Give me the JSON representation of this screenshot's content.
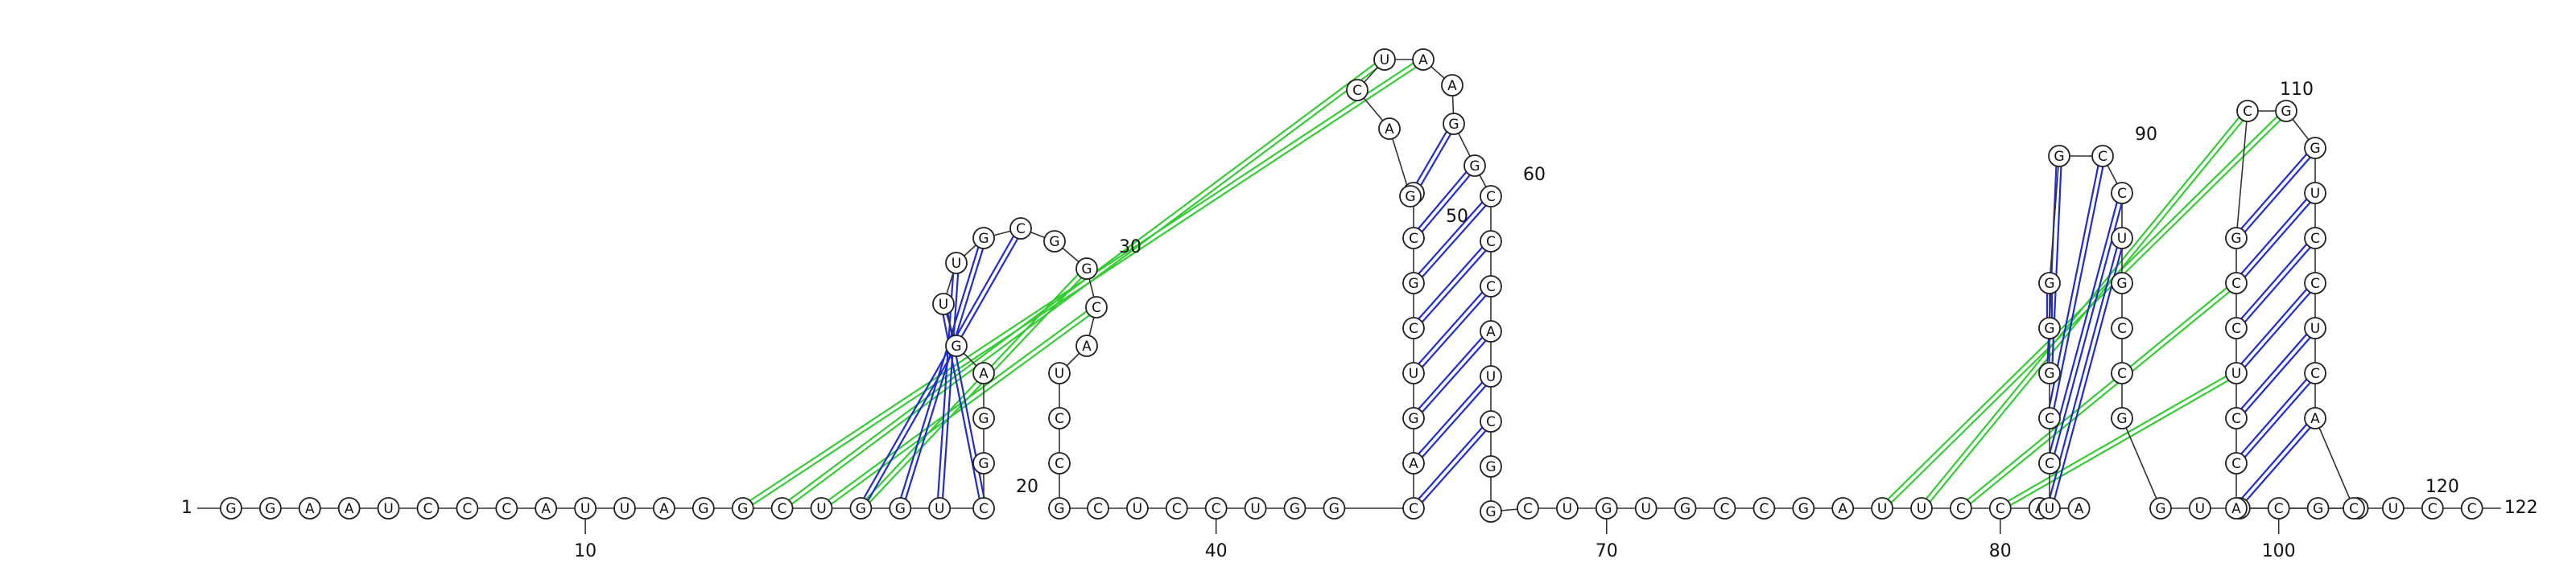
{
  "diagram": {
    "sequence": "GGAAUCCCAUUAGGCUGGUCGGAGUUGCGGCAUCCGCUCCUGGCAGUCGCGGACUAAGGCCCAUCGGCUGUGCCGAUUCCAAUCCGGGGCCUGCCGGUCCGGACCUCCGCGGUCCUCACUCC",
    "length": 122,
    "start_label": "1",
    "end_label": "122",
    "axis_ticks": [
      {
        "index": 10,
        "label": "10"
      },
      {
        "index": 40,
        "label": "40"
      },
      {
        "index": 70,
        "label": "70"
      },
      {
        "index": 80,
        "label": "80"
      },
      {
        "index": 100,
        "label": "100"
      }
    ],
    "loop_labels": [
      {
        "index": 20,
        "label": "20"
      },
      {
        "index": 30,
        "label": "30"
      },
      {
        "index": 50,
        "label": "50"
      },
      {
        "index": 60,
        "label": "60"
      },
      {
        "index": 90,
        "label": "90"
      },
      {
        "index": 110,
        "label": "110"
      },
      {
        "index": 120,
        "label": "120"
      }
    ],
    "canonical_pairs": [
      [
        20,
        25
      ],
      [
        19,
        26
      ],
      [
        18,
        27
      ],
      [
        17,
        28
      ],
      [
        44,
        65
      ],
      [
        45,
        64
      ],
      [
        46,
        63
      ],
      [
        47,
        62
      ],
      [
        48,
        61
      ],
      [
        49,
        60
      ],
      [
        50,
        59
      ],
      [
        51,
        58
      ],
      [
        83,
        92
      ],
      [
        84,
        91
      ],
      [
        85,
        90
      ],
      [
        86,
        89
      ],
      [
        87,
        88
      ],
      [
        103,
        118
      ],
      [
        104,
        117
      ],
      [
        105,
        116
      ],
      [
        106,
        115
      ],
      [
        107,
        114
      ],
      [
        108,
        113
      ],
      [
        109,
        112
      ]
    ],
    "wobble_pairs": [
      [
        52,
        57
      ],
      [
        88,
        93
      ],
      [
        104,
        117
      ],
      [
        108,
        113
      ],
      [
        110,
        111
      ]
    ],
    "pseudoknot_pairs": [
      [
        14,
        56
      ],
      [
        15,
        55
      ],
      [
        16,
        31
      ],
      [
        17,
        30
      ],
      [
        77,
        111
      ],
      [
        78,
        110
      ],
      [
        79,
        108
      ],
      [
        80,
        106
      ]
    ],
    "colors": {
      "canonical": "#1f2bd6",
      "pseudoknot": "#33cc33",
      "node_stroke": "#222222",
      "node_fill": "#ffffff",
      "backbone": "#333333",
      "text": "#111111"
    }
  }
}
